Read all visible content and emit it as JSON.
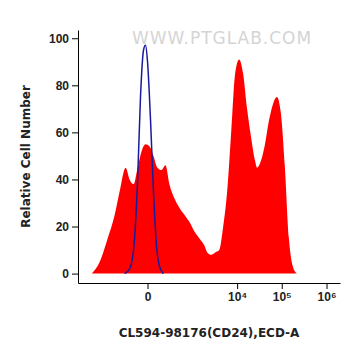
{
  "chart_data": {
    "type": "area",
    "annotations": [
      "WWW.PTGLAB.COM"
    ],
    "x_label": "CL594-98176(CD24),ECD-A",
    "y_label": "Relative Cell Number",
    "xlim": [
      -3500,
      2000000
    ],
    "xticks": [
      0,
      {
        "value": 10000,
        "label": "10⁴"
      },
      {
        "value": 100000,
        "label": "10⁵"
      },
      {
        "value": 1000000,
        "label": "10⁶"
      }
    ],
    "ylim": [
      -4,
      103.5
    ],
    "yticks": [
      0,
      20,
      40,
      60,
      80,
      100
    ],
    "series": [
      {
        "type": "area",
        "color": "#ff0000",
        "x": [
          -1671,
          -1077,
          -681,
          -445,
          -322,
          -210,
          -153,
          -106,
          -67,
          -36,
          -11,
          11,
          36,
          67,
          106,
          153,
          210,
          301,
          418,
          570,
          766,
          1018,
          1344,
          1765,
          2075,
          2569,
          3176,
          3920,
          4834,
          5954,
          7333,
          9019,
          11090,
          13630,
          16750,
          20560,
          25270,
          27990,
          34380,
          42200,
          51810,
          63630,
          78080,
          95850,
          117660,
          144530,
          177050,
          217450
        ],
        "values": [
          0,
          5,
          15,
          25,
          35,
          45,
          40,
          38,
          45,
          52,
          55,
          54,
          50,
          45,
          44,
          46,
          38,
          32,
          28,
          25,
          22,
          18,
          15,
          12,
          9,
          8,
          9,
          10,
          20,
          35,
          60,
          85,
          91,
          85,
          70,
          58,
          48,
          45,
          48,
          55,
          65,
          72,
          75,
          68,
          45,
          15,
          3,
          0
        ]
      },
      {
        "type": "line",
        "color": "#1a1a9c",
        "x": [
          -226,
          -153,
          -106,
          -67,
          -44,
          -23,
          -11,
          0,
          17,
          36,
          59,
          86,
          128
        ],
        "values": [
          0,
          2,
          10,
          40,
          75,
          95,
          97,
          90,
          65,
          35,
          12,
          3,
          0
        ]
      }
    ]
  }
}
